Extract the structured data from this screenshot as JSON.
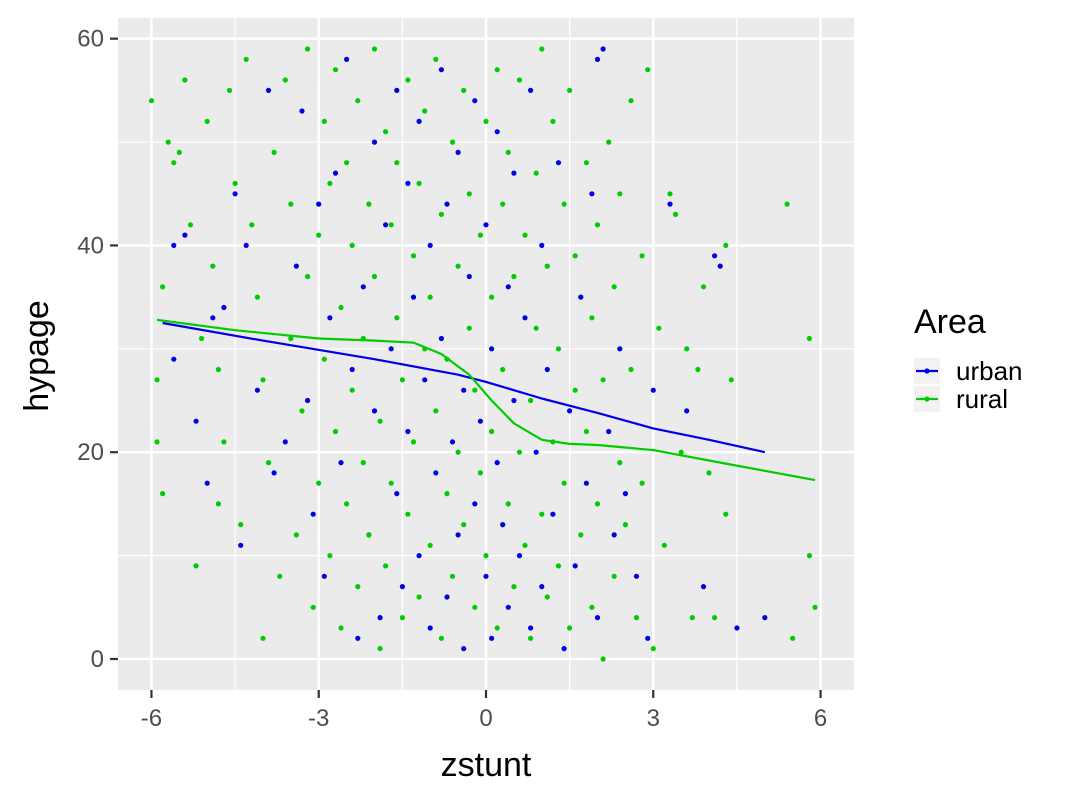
{
  "chart_data": {
    "type": "scatter",
    "xlabel": "zstunt",
    "ylabel": "hypage",
    "xlim": [
      -6.6,
      6.6
    ],
    "ylim": [
      -3,
      62
    ],
    "x_ticks": [
      -6,
      -3,
      0,
      3,
      6
    ],
    "x_tick_labels": [
      "-6",
      "-3",
      "0",
      "3",
      "6"
    ],
    "y_ticks": [
      0,
      20,
      40,
      60
    ],
    "y_tick_labels": [
      "0",
      "20",
      "40",
      "60"
    ],
    "grid": true,
    "background": "#ebebeb",
    "legend": {
      "title": "Area",
      "position": "right",
      "entries": [
        "urban",
        "rural"
      ]
    },
    "series": [
      {
        "name": "urban",
        "color": "#0000e6",
        "smooth_x": [
          -5.8,
          -4.0,
          -2.0,
          -0.5,
          0.0,
          1.0,
          2.0,
          3.0,
          4.0,
          5.0
        ],
        "smooth_y": [
          32.5,
          30.8,
          29.0,
          27.5,
          26.8,
          25.2,
          23.8,
          22.3,
          21.2,
          20.0
        ],
        "points": [
          [
            -5.6,
            40
          ],
          [
            -5.6,
            29
          ],
          [
            -5.4,
            41
          ],
          [
            -5.2,
            23
          ],
          [
            -5.0,
            17
          ],
          [
            -4.9,
            33
          ],
          [
            -4.7,
            34
          ],
          [
            -4.5,
            45
          ],
          [
            -4.4,
            11
          ],
          [
            -4.3,
            40
          ],
          [
            -4.1,
            26
          ],
          [
            -3.9,
            55
          ],
          [
            -3.8,
            18
          ],
          [
            -3.6,
            21
          ],
          [
            -3.4,
            38
          ],
          [
            -3.3,
            53
          ],
          [
            -3.2,
            25
          ],
          [
            -3.1,
            14
          ],
          [
            -3.0,
            44
          ],
          [
            -2.9,
            8
          ],
          [
            -2.8,
            33
          ],
          [
            -2.7,
            47
          ],
          [
            -2.6,
            19
          ],
          [
            -2.5,
            58
          ],
          [
            -2.4,
            28
          ],
          [
            -2.3,
            2
          ],
          [
            -2.2,
            36
          ],
          [
            -2.1,
            12
          ],
          [
            -2.0,
            50
          ],
          [
            -2.0,
            24
          ],
          [
            -1.9,
            4
          ],
          [
            -1.8,
            42
          ],
          [
            -1.7,
            30
          ],
          [
            -1.6,
            16
          ],
          [
            -1.6,
            55
          ],
          [
            -1.5,
            7
          ],
          [
            -1.4,
            22
          ],
          [
            -1.4,
            46
          ],
          [
            -1.3,
            35
          ],
          [
            -1.2,
            10
          ],
          [
            -1.2,
            52
          ],
          [
            -1.1,
            27
          ],
          [
            -1.0,
            3
          ],
          [
            -1.0,
            40
          ],
          [
            -0.9,
            18
          ],
          [
            -0.8,
            57
          ],
          [
            -0.8,
            31
          ],
          [
            -0.7,
            6
          ],
          [
            -0.7,
            44
          ],
          [
            -0.6,
            21
          ],
          [
            -0.5,
            12
          ],
          [
            -0.5,
            49
          ],
          [
            -0.4,
            26
          ],
          [
            -0.4,
            1
          ],
          [
            -0.3,
            37
          ],
          [
            -0.2,
            15
          ],
          [
            -0.2,
            54
          ],
          [
            -0.1,
            23
          ],
          [
            0.0,
            8
          ],
          [
            0.0,
            42
          ],
          [
            0.1,
            30
          ],
          [
            0.1,
            2
          ],
          [
            0.2,
            19
          ],
          [
            0.2,
            51
          ],
          [
            0.3,
            13
          ],
          [
            0.4,
            36
          ],
          [
            0.4,
            5
          ],
          [
            0.5,
            25
          ],
          [
            0.5,
            47
          ],
          [
            0.6,
            10
          ],
          [
            0.7,
            33
          ],
          [
            0.8,
            3
          ],
          [
            0.8,
            55
          ],
          [
            0.9,
            20
          ],
          [
            1.0,
            40
          ],
          [
            1.0,
            7
          ],
          [
            1.1,
            28
          ],
          [
            1.2,
            14
          ],
          [
            1.3,
            48
          ],
          [
            1.4,
            1
          ],
          [
            1.5,
            24
          ],
          [
            1.6,
            9
          ],
          [
            1.7,
            35
          ],
          [
            1.8,
            17
          ],
          [
            1.9,
            45
          ],
          [
            2.0,
            4
          ],
          [
            2.0,
            58
          ],
          [
            2.1,
            59
          ],
          [
            2.2,
            22
          ],
          [
            2.3,
            12
          ],
          [
            2.4,
            30
          ],
          [
            2.5,
            16
          ],
          [
            2.7,
            8
          ],
          [
            2.9,
            2
          ],
          [
            3.0,
            26
          ],
          [
            3.3,
            44
          ],
          [
            3.6,
            24
          ],
          [
            3.9,
            7
          ],
          [
            4.1,
            39
          ],
          [
            4.2,
            38
          ],
          [
            4.5,
            3
          ],
          [
            5.0,
            4
          ]
        ]
      },
      {
        "name": "rural",
        "color": "#00cc00",
        "smooth_x": [
          -5.9,
          -4.5,
          -3.0,
          -2.0,
          -1.3,
          -0.8,
          -0.3,
          0.1,
          0.5,
          1.0,
          1.5,
          2.0,
          3.0,
          4.0,
          5.0,
          5.9
        ],
        "smooth_y": [
          32.8,
          31.8,
          31.0,
          30.8,
          30.6,
          29.5,
          27.5,
          25.0,
          22.8,
          21.2,
          20.8,
          20.7,
          20.2,
          19.2,
          18.2,
          17.3
        ],
        "points": [
          [
            -6.0,
            54
          ],
          [
            -5.9,
            27
          ],
          [
            -5.9,
            21
          ],
          [
            -5.8,
            36
          ],
          [
            -5.8,
            16
          ],
          [
            -5.7,
            50
          ],
          [
            -5.6,
            48
          ],
          [
            -5.5,
            49
          ],
          [
            -5.4,
            56
          ],
          [
            -5.3,
            42
          ],
          [
            -5.2,
            9
          ],
          [
            -5.1,
            31
          ],
          [
            -5.0,
            52
          ],
          [
            -4.9,
            38
          ],
          [
            -4.8,
            28
          ],
          [
            -4.8,
            15
          ],
          [
            -4.7,
            21
          ],
          [
            -4.6,
            55
          ],
          [
            -4.5,
            46
          ],
          [
            -4.4,
            13
          ],
          [
            -4.3,
            58
          ],
          [
            -4.2,
            42
          ],
          [
            -4.1,
            35
          ],
          [
            -4.0,
            2
          ],
          [
            -4.0,
            27
          ],
          [
            -3.9,
            19
          ],
          [
            -3.8,
            49
          ],
          [
            -3.7,
            8
          ],
          [
            -3.6,
            56
          ],
          [
            -3.5,
            31
          ],
          [
            -3.5,
            44
          ],
          [
            -3.4,
            12
          ],
          [
            -3.3,
            24
          ],
          [
            -3.2,
            59
          ],
          [
            -3.2,
            37
          ],
          [
            -3.1,
            5
          ],
          [
            -3.0,
            41
          ],
          [
            -3.0,
            17
          ],
          [
            -2.9,
            52
          ],
          [
            -2.9,
            29
          ],
          [
            -2.8,
            10
          ],
          [
            -2.8,
            46
          ],
          [
            -2.7,
            22
          ],
          [
            -2.7,
            57
          ],
          [
            -2.6,
            34
          ],
          [
            -2.6,
            3
          ],
          [
            -2.5,
            15
          ],
          [
            -2.5,
            48
          ],
          [
            -2.4,
            26
          ],
          [
            -2.4,
            40
          ],
          [
            -2.3,
            7
          ],
          [
            -2.3,
            54
          ],
          [
            -2.2,
            19
          ],
          [
            -2.2,
            31
          ],
          [
            -2.1,
            44
          ],
          [
            -2.1,
            12
          ],
          [
            -2.0,
            59
          ],
          [
            -2.0,
            37
          ],
          [
            -1.9,
            23
          ],
          [
            -1.9,
            1
          ],
          [
            -1.8,
            51
          ],
          [
            -1.8,
            9
          ],
          [
            -1.7,
            42
          ],
          [
            -1.7,
            17
          ],
          [
            -1.6,
            33
          ],
          [
            -1.6,
            48
          ],
          [
            -1.5,
            4
          ],
          [
            -1.5,
            27
          ],
          [
            -1.4,
            56
          ],
          [
            -1.4,
            14
          ],
          [
            -1.3,
            39
          ],
          [
            -1.3,
            21
          ],
          [
            -1.2,
            46
          ],
          [
            -1.2,
            6
          ],
          [
            -1.1,
            30
          ],
          [
            -1.1,
            53
          ],
          [
            -1.0,
            11
          ],
          [
            -1.0,
            35
          ],
          [
            -0.9,
            24
          ],
          [
            -0.9,
            58
          ],
          [
            -0.8,
            2
          ],
          [
            -0.8,
            43
          ],
          [
            -0.7,
            16
          ],
          [
            -0.7,
            29
          ],
          [
            -0.6,
            50
          ],
          [
            -0.6,
            8
          ],
          [
            -0.5,
            38
          ],
          [
            -0.5,
            20
          ],
          [
            -0.4,
            55
          ],
          [
            -0.4,
            13
          ],
          [
            -0.3,
            32
          ],
          [
            -0.3,
            45
          ],
          [
            -0.2,
            5
          ],
          [
            -0.2,
            26
          ],
          [
            -0.1,
            41
          ],
          [
            -0.1,
            18
          ],
          [
            0.0,
            52
          ],
          [
            0.0,
            10
          ],
          [
            0.1,
            35
          ],
          [
            0.1,
            22
          ],
          [
            0.2,
            57
          ],
          [
            0.2,
            3
          ],
          [
            0.3,
            44
          ],
          [
            0.3,
            28
          ],
          [
            0.4,
            15
          ],
          [
            0.4,
            49
          ],
          [
            0.5,
            7
          ],
          [
            0.5,
            37
          ],
          [
            0.6,
            20
          ],
          [
            0.6,
            56
          ],
          [
            0.7,
            11
          ],
          [
            0.7,
            41
          ],
          [
            0.8,
            25
          ],
          [
            0.8,
            2
          ],
          [
            0.9,
            47
          ],
          [
            0.9,
            32
          ],
          [
            1.0,
            14
          ],
          [
            1.0,
            59
          ],
          [
            1.1,
            6
          ],
          [
            1.1,
            38
          ],
          [
            1.2,
            21
          ],
          [
            1.2,
            52
          ],
          [
            1.3,
            9
          ],
          [
            1.3,
            30
          ],
          [
            1.4,
            44
          ],
          [
            1.4,
            17
          ],
          [
            1.5,
            3
          ],
          [
            1.5,
            55
          ],
          [
            1.6,
            26
          ],
          [
            1.6,
            39
          ],
          [
            1.7,
            12
          ],
          [
            1.8,
            48
          ],
          [
            1.8,
            22
          ],
          [
            1.9,
            5
          ],
          [
            1.9,
            33
          ],
          [
            2.0,
            42
          ],
          [
            2.0,
            15
          ],
          [
            2.1,
            27
          ],
          [
            2.1,
            0
          ],
          [
            2.2,
            50
          ],
          [
            2.3,
            8
          ],
          [
            2.3,
            36
          ],
          [
            2.4,
            19
          ],
          [
            2.4,
            45
          ],
          [
            2.5,
            13
          ],
          [
            2.6,
            54
          ],
          [
            2.6,
            28
          ],
          [
            2.7,
            4
          ],
          [
            2.8,
            39
          ],
          [
            2.8,
            17
          ],
          [
            2.9,
            57
          ],
          [
            3.0,
            1
          ],
          [
            3.1,
            32
          ],
          [
            3.2,
            11
          ],
          [
            3.3,
            45
          ],
          [
            3.4,
            43
          ],
          [
            3.5,
            20
          ],
          [
            3.6,
            30
          ],
          [
            3.7,
            4
          ],
          [
            3.8,
            28
          ],
          [
            3.9,
            36
          ],
          [
            4.0,
            18
          ],
          [
            4.1,
            4
          ],
          [
            4.3,
            40
          ],
          [
            4.3,
            14
          ],
          [
            4.4,
            27
          ],
          [
            5.4,
            44
          ],
          [
            5.5,
            2
          ],
          [
            5.8,
            10
          ],
          [
            5.8,
            31
          ],
          [
            5.9,
            5
          ]
        ]
      }
    ]
  }
}
